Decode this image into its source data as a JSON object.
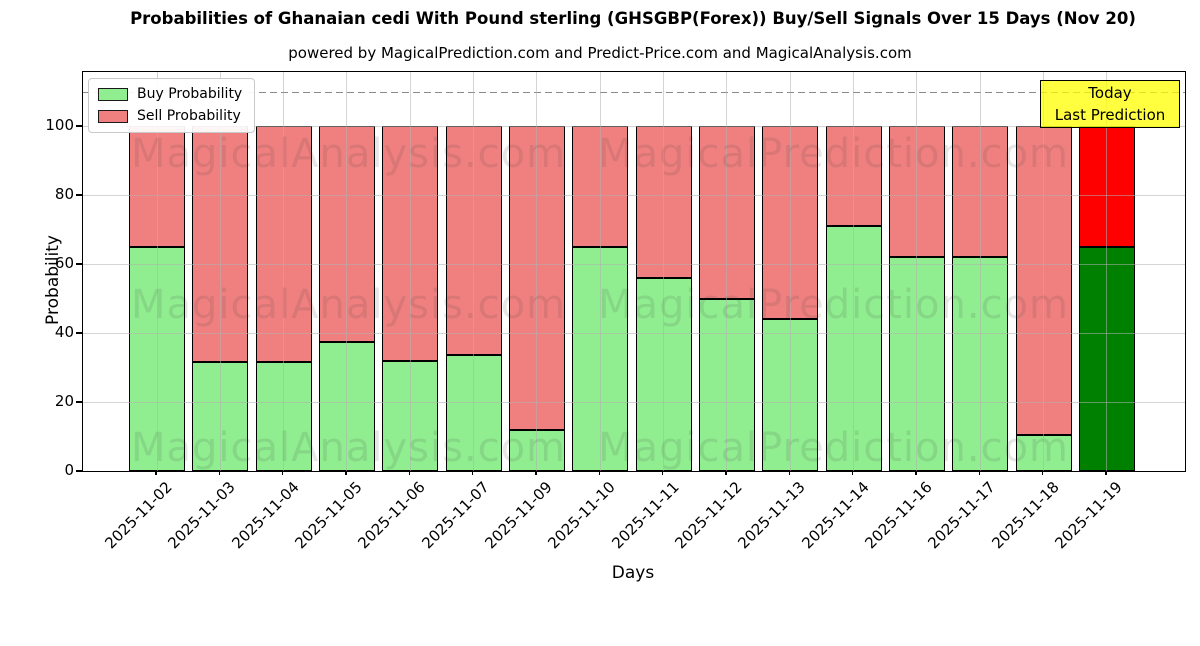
{
  "title": "Probabilities of Ghanaian cedi With Pound sterling (GHSGBP(Forex)) Buy/Sell Signals Over 15 Days (Nov 20)",
  "subtitle": "powered by MagicalPrediction.com and Predict-Price.com and MagicalAnalysis.com",
  "legend": {
    "buy_label": "Buy Probability",
    "sell_label": "Sell Probability"
  },
  "annotation_box": {
    "line1": "Today",
    "line2": "Last Prediction"
  },
  "axes": {
    "xlabel": "Days",
    "ylabel": "Probability"
  },
  "watermarks": {
    "left_text": "MagicalAnalysis.com",
    "right_text": "MagicalPrediction.com"
  },
  "colors": {
    "buy": "#90ee90",
    "sell": "#f08080",
    "today_buy": "#008000",
    "today_sell": "#ff0000",
    "annotation_bg": "#ffff00",
    "grid": "#b0b0b0",
    "dashed_line": "#8a8a8a"
  },
  "chart_data": {
    "type": "bar",
    "stacked": true,
    "title": "Probabilities of Ghanaian cedi With Pound sterling (GHSGBP(Forex)) Buy/Sell Signals Over 15 Days (Nov 20)",
    "xlabel": "Days",
    "ylabel": "Probability",
    "categories": [
      "2025-11-02",
      "2025-11-03",
      "2025-11-04",
      "2025-11-05",
      "2025-11-06",
      "2025-11-07",
      "2025-11-09",
      "2025-11-10",
      "2025-11-11",
      "2025-11-12",
      "2025-11-13",
      "2025-11-14",
      "2025-11-16",
      "2025-11-17",
      "2025-11-18",
      "2025-11-19"
    ],
    "series": [
      {
        "name": "Buy Probability",
        "color": "#90ee90",
        "values": [
          65,
          31.5,
          31.5,
          37.5,
          32,
          33.5,
          12,
          65,
          56,
          50,
          44,
          71,
          62,
          62,
          10.5,
          65
        ]
      },
      {
        "name": "Sell Probability",
        "color": "#f08080",
        "values": [
          35,
          68.5,
          68.5,
          62.5,
          68,
          66.5,
          88,
          35,
          44,
          50,
          56,
          29,
          38,
          38,
          89.5,
          35
        ]
      }
    ],
    "today_bar": {
      "category": "2025-11-19",
      "index": 15,
      "buy_color": "#008000",
      "sell_color": "#ff0000",
      "label": "Today Last Prediction"
    },
    "yticks": [
      0,
      20,
      40,
      60,
      80,
      100
    ],
    "ylim": [
      0,
      115.7
    ],
    "threshold_dashed_line_y": 110,
    "grid": true,
    "legend_position": "upper left"
  }
}
